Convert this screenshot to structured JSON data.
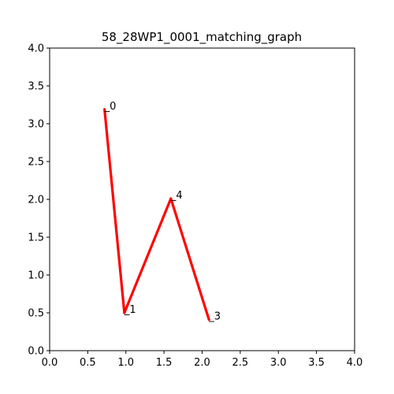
{
  "chart_data": {
    "type": "line",
    "title": "58_28WP1_0001_matching_graph",
    "xlabel": "",
    "ylabel": "",
    "xlim": [
      0,
      4
    ],
    "ylim": [
      0,
      4
    ],
    "x_ticks": [
      "0.0",
      "0.5",
      "1.0",
      "1.5",
      "2.0",
      "2.5",
      "3.0",
      "3.5",
      "4.0"
    ],
    "y_ticks": [
      "0.0",
      "0.5",
      "1.0",
      "1.5",
      "2.0",
      "2.5",
      "3.0",
      "3.5",
      "4.0"
    ],
    "grid": false,
    "nodes": [
      {
        "label": "_0",
        "x": 0.72,
        "y": 3.19
      },
      {
        "label": "_1",
        "x": 0.98,
        "y": 0.5
      },
      {
        "label": "_4",
        "x": 1.59,
        "y": 2.01
      },
      {
        "label": "_3",
        "x": 2.09,
        "y": 0.41
      }
    ],
    "edges": [
      [
        0,
        1
      ],
      [
        1,
        2
      ],
      [
        2,
        3
      ]
    ],
    "line_color": "#ff0000"
  }
}
